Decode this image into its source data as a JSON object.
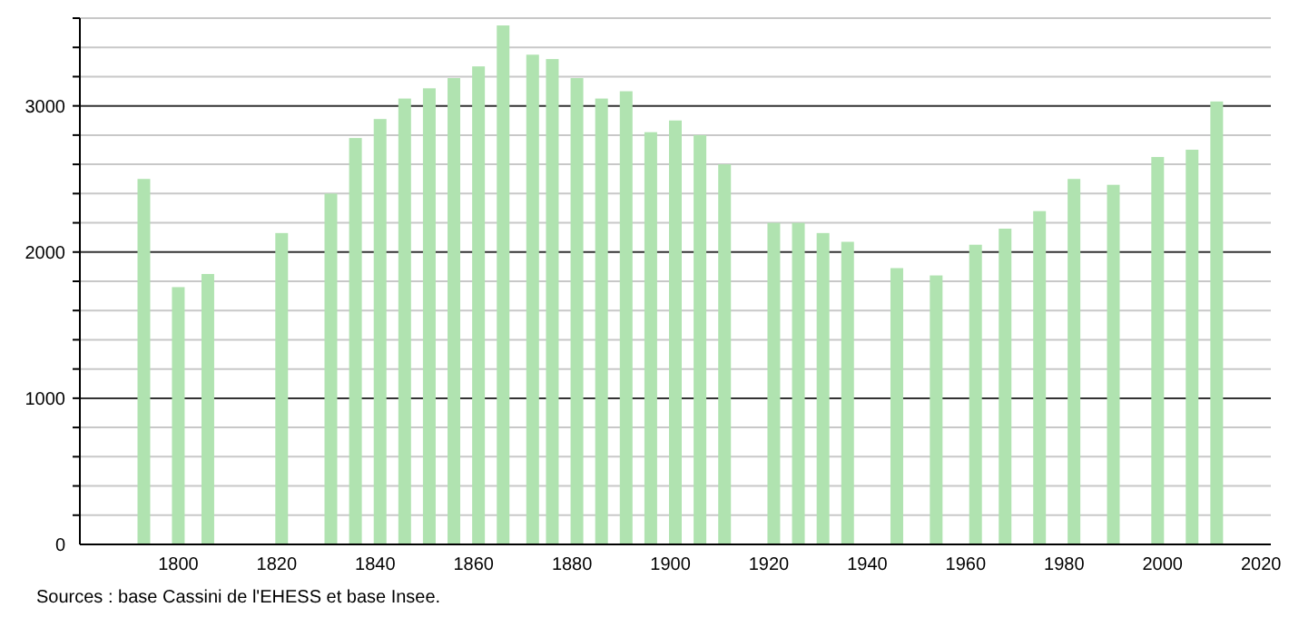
{
  "chart_data": {
    "type": "bar",
    "x": [
      1793,
      1800,
      1806,
      1821,
      1831,
      1836,
      1841,
      1846,
      1851,
      1856,
      1861,
      1866,
      1872,
      1876,
      1881,
      1886,
      1891,
      1896,
      1901,
      1906,
      1911,
      1921,
      1926,
      1931,
      1936,
      1946,
      1954,
      1962,
      1968,
      1975,
      1982,
      1990,
      1999,
      2006,
      2011
    ],
    "values": [
      2500,
      1760,
      1850,
      2130,
      2400,
      2780,
      2910,
      3050,
      3120,
      3190,
      3270,
      3550,
      3350,
      3320,
      3190,
      3050,
      3100,
      2820,
      2900,
      2800,
      2600,
      2200,
      2200,
      2130,
      2070,
      1890,
      1840,
      2050,
      2160,
      2280,
      2500,
      2460,
      2650,
      2700,
      3030
    ],
    "color": "#b0e3b0",
    "xlim": [
      1780,
      2022
    ],
    "xticks": [
      1800,
      1820,
      1840,
      1860,
      1880,
      1900,
      1920,
      1940,
      1960,
      1980,
      2000,
      2020
    ],
    "ylim": [
      0,
      3600
    ],
    "yticks": [
      0,
      {
        "value": 200,
        "label": null
      },
      {
        "value": 400,
        "label": null
      },
      {
        "value": 600,
        "label": null
      },
      {
        "value": 800,
        "label": null
      },
      1000,
      {
        "value": 1200,
        "label": null
      },
      {
        "value": 1400,
        "label": null
      },
      {
        "value": 1600,
        "label": null
      },
      {
        "value": 1800,
        "label": null
      },
      2000,
      {
        "value": 2200,
        "label": null
      },
      {
        "value": 2400,
        "label": null
      },
      {
        "value": 2600,
        "label": null
      },
      {
        "value": 2800,
        "label": null
      },
      3000,
      {
        "value": 3200,
        "label": null
      },
      {
        "value": 3400,
        "label": null
      },
      {
        "value": 3600,
        "label": null
      }
    ],
    "grid": "y",
    "annotations": [
      "Sources : base Cassini de l'EHESS et base Insee."
    ]
  }
}
